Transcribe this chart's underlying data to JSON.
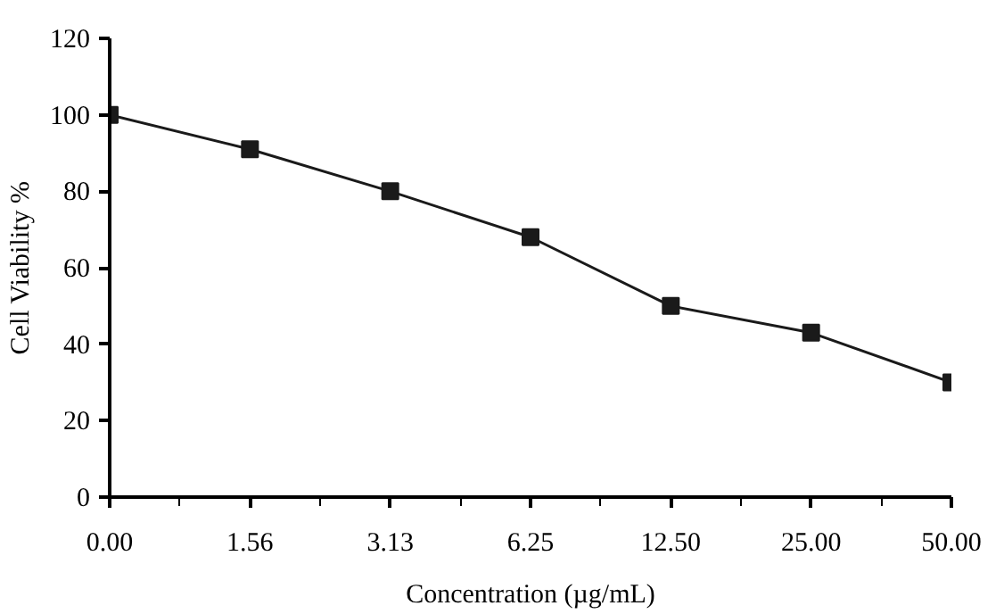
{
  "chart_data": {
    "type": "line",
    "xlabel": "Concentration (µg/mL)",
    "ylabel": "Cell Viability %",
    "categories": [
      "0.00",
      "1.56",
      "3.13",
      "6.25",
      "12.50",
      "25.00",
      "50.00"
    ],
    "series": [
      {
        "color": "#1a1a1a",
        "values": [
          100,
          91,
          80,
          68,
          50,
          43,
          30
        ]
      }
    ],
    "ylim": [
      0,
      120
    ],
    "yticks": [
      0,
      20,
      40,
      60,
      80,
      100,
      120
    ],
    "marker": "square",
    "line_style": "solid"
  }
}
